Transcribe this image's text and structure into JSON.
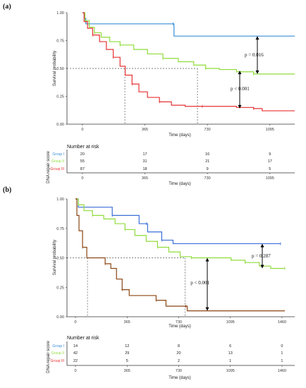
{
  "chart_data": [
    {
      "panel": "(a)",
      "type": "line",
      "xlabel": "Time (days)",
      "ylabel": "Survival probability",
      "xlim": [
        -90,
        1240
      ],
      "ylim": [
        0,
        1
      ],
      "xticks": [
        0,
        365,
        730,
        1095
      ],
      "yticks": [
        "0.00",
        "0.25",
        "0.50",
        "0.75",
        "1.00"
      ],
      "series": [
        {
          "color": "#3a8fd8",
          "points": [
            [
              0,
              1
            ],
            [
              10,
              0.95
            ],
            [
              20,
              0.9
            ],
            [
              530,
              0.9
            ],
            [
              535,
              0.79
            ],
            [
              1240,
              0.79
            ]
          ]
        },
        {
          "color": "#8fdc3a",
          "points": [
            [
              0,
              1
            ],
            [
              15,
              0.93
            ],
            [
              40,
              0.87
            ],
            [
              70,
              0.82
            ],
            [
              110,
              0.78
            ],
            [
              160,
              0.74
            ],
            [
              220,
              0.71
            ],
            [
              300,
              0.67
            ],
            [
              380,
              0.63
            ],
            [
              470,
              0.59
            ],
            [
              560,
              0.56
            ],
            [
              650,
              0.53
            ],
            [
              720,
              0.5
            ],
            [
              800,
              0.49
            ],
            [
              900,
              0.47
            ],
            [
              1000,
              0.45
            ],
            [
              1240,
              0.45
            ]
          ]
        },
        {
          "color": "#e63232",
          "points": [
            [
              0,
              1
            ],
            [
              10,
              0.92
            ],
            [
              30,
              0.86
            ],
            [
              60,
              0.8
            ],
            [
              100,
              0.74
            ],
            [
              140,
              0.67
            ],
            [
              180,
              0.6
            ],
            [
              220,
              0.52
            ],
            [
              250,
              0.44
            ],
            [
              290,
              0.36
            ],
            [
              330,
              0.29
            ],
            [
              380,
              0.24
            ],
            [
              450,
              0.2
            ],
            [
              520,
              0.17
            ],
            [
              600,
              0.16
            ],
            [
              700,
              0.16
            ],
            [
              800,
              0.16
            ],
            [
              900,
              0.15
            ],
            [
              1000,
              0.14
            ],
            [
              1050,
              0.12
            ],
            [
              1240,
              0.12
            ]
          ]
        }
      ],
      "median_lines": [
        {
          "y": 0.5,
          "x": [
            248,
            672
          ]
        }
      ],
      "annotations": [
        "p = 0.016",
        "p < 0.001"
      ],
      "risk_table": {
        "title": "Number at risk",
        "ylabel": "DNA repair score",
        "xlabel": "Time (days)",
        "groups": [
          "Group I",
          "Group II",
          "Group III"
        ],
        "times": [
          0,
          365,
          730,
          1095
        ],
        "values": [
          [
            20,
            17,
            16,
            9
          ],
          [
            55,
            31,
            21,
            17
          ],
          [
            87,
            18,
            9,
            5
          ]
        ]
      }
    },
    {
      "panel": "(b)",
      "type": "line",
      "xlabel": "Time (days)",
      "ylabel": "Survival probability",
      "xlim": [
        -60,
        1550
      ],
      "ylim": [
        0,
        1
      ],
      "xticks": [
        0,
        365,
        730,
        1095,
        1460
      ],
      "yticks": [
        "0.00",
        "0.25",
        "0.50",
        "0.75",
        "1.00"
      ],
      "series": [
        {
          "color": "#3a6fd8",
          "points": [
            [
              0,
              1
            ],
            [
              20,
              0.93
            ],
            [
              250,
              0.93
            ],
            [
              260,
              0.86
            ],
            [
              440,
              0.86
            ],
            [
              450,
              0.79
            ],
            [
              500,
              0.79
            ],
            [
              510,
              0.72
            ],
            [
              600,
              0.72
            ],
            [
              610,
              0.65
            ],
            [
              680,
              0.65
            ],
            [
              690,
              0.62
            ],
            [
              1450,
              0.62
            ]
          ]
        },
        {
          "color": "#8fdc3a",
          "points": [
            [
              0,
              1
            ],
            [
              20,
              0.95
            ],
            [
              60,
              0.9
            ],
            [
              120,
              0.86
            ],
            [
              200,
              0.83
            ],
            [
              280,
              0.79
            ],
            [
              350,
              0.74
            ],
            [
              420,
              0.69
            ],
            [
              500,
              0.64
            ],
            [
              580,
              0.59
            ],
            [
              660,
              0.55
            ],
            [
              740,
              0.51
            ],
            [
              820,
              0.5
            ],
            [
              1000,
              0.5
            ],
            [
              1100,
              0.48
            ],
            [
              1200,
              0.46
            ],
            [
              1300,
              0.43
            ],
            [
              1380,
              0.41
            ],
            [
              1480,
              0.41
            ]
          ]
        },
        {
          "color": "#8b4513",
          "points": [
            [
              0,
              1
            ],
            [
              10,
              0.86
            ],
            [
              25,
              0.73
            ],
            [
              50,
              0.59
            ],
            [
              80,
              0.5
            ],
            [
              200,
              0.5
            ],
            [
              210,
              0.45
            ],
            [
              250,
              0.41
            ],
            [
              290,
              0.32
            ],
            [
              330,
              0.23
            ],
            [
              380,
              0.18
            ],
            [
              560,
              0.18
            ],
            [
              570,
              0.14
            ],
            [
              630,
              0.14
            ],
            [
              640,
              0.09
            ],
            [
              780,
              0.09
            ],
            [
              790,
              0.05
            ],
            [
              1480,
              0.05
            ]
          ]
        }
      ],
      "median_lines": [
        {
          "y": 0.5,
          "x": [
            85,
            775
          ]
        }
      ],
      "annotations": [
        "p = 0.287",
        "p < 0.001"
      ],
      "risk_table": {
        "title": "Number at risk",
        "ylabel": "DNA repair score",
        "xlabel": "Time (days)",
        "groups": [
          "Group I",
          "Group II",
          "Group III"
        ],
        "times": [
          0,
          365,
          730,
          1095,
          1460
        ],
        "values": [
          [
            14,
            12,
            8,
            6,
            0
          ],
          [
            42,
            29,
            20,
            13,
            1
          ],
          [
            22,
            5,
            2,
            1,
            1
          ]
        ]
      }
    }
  ],
  "group_colors": [
    "#3a8fd8",
    "#8fdc3a",
    "#e63232"
  ]
}
